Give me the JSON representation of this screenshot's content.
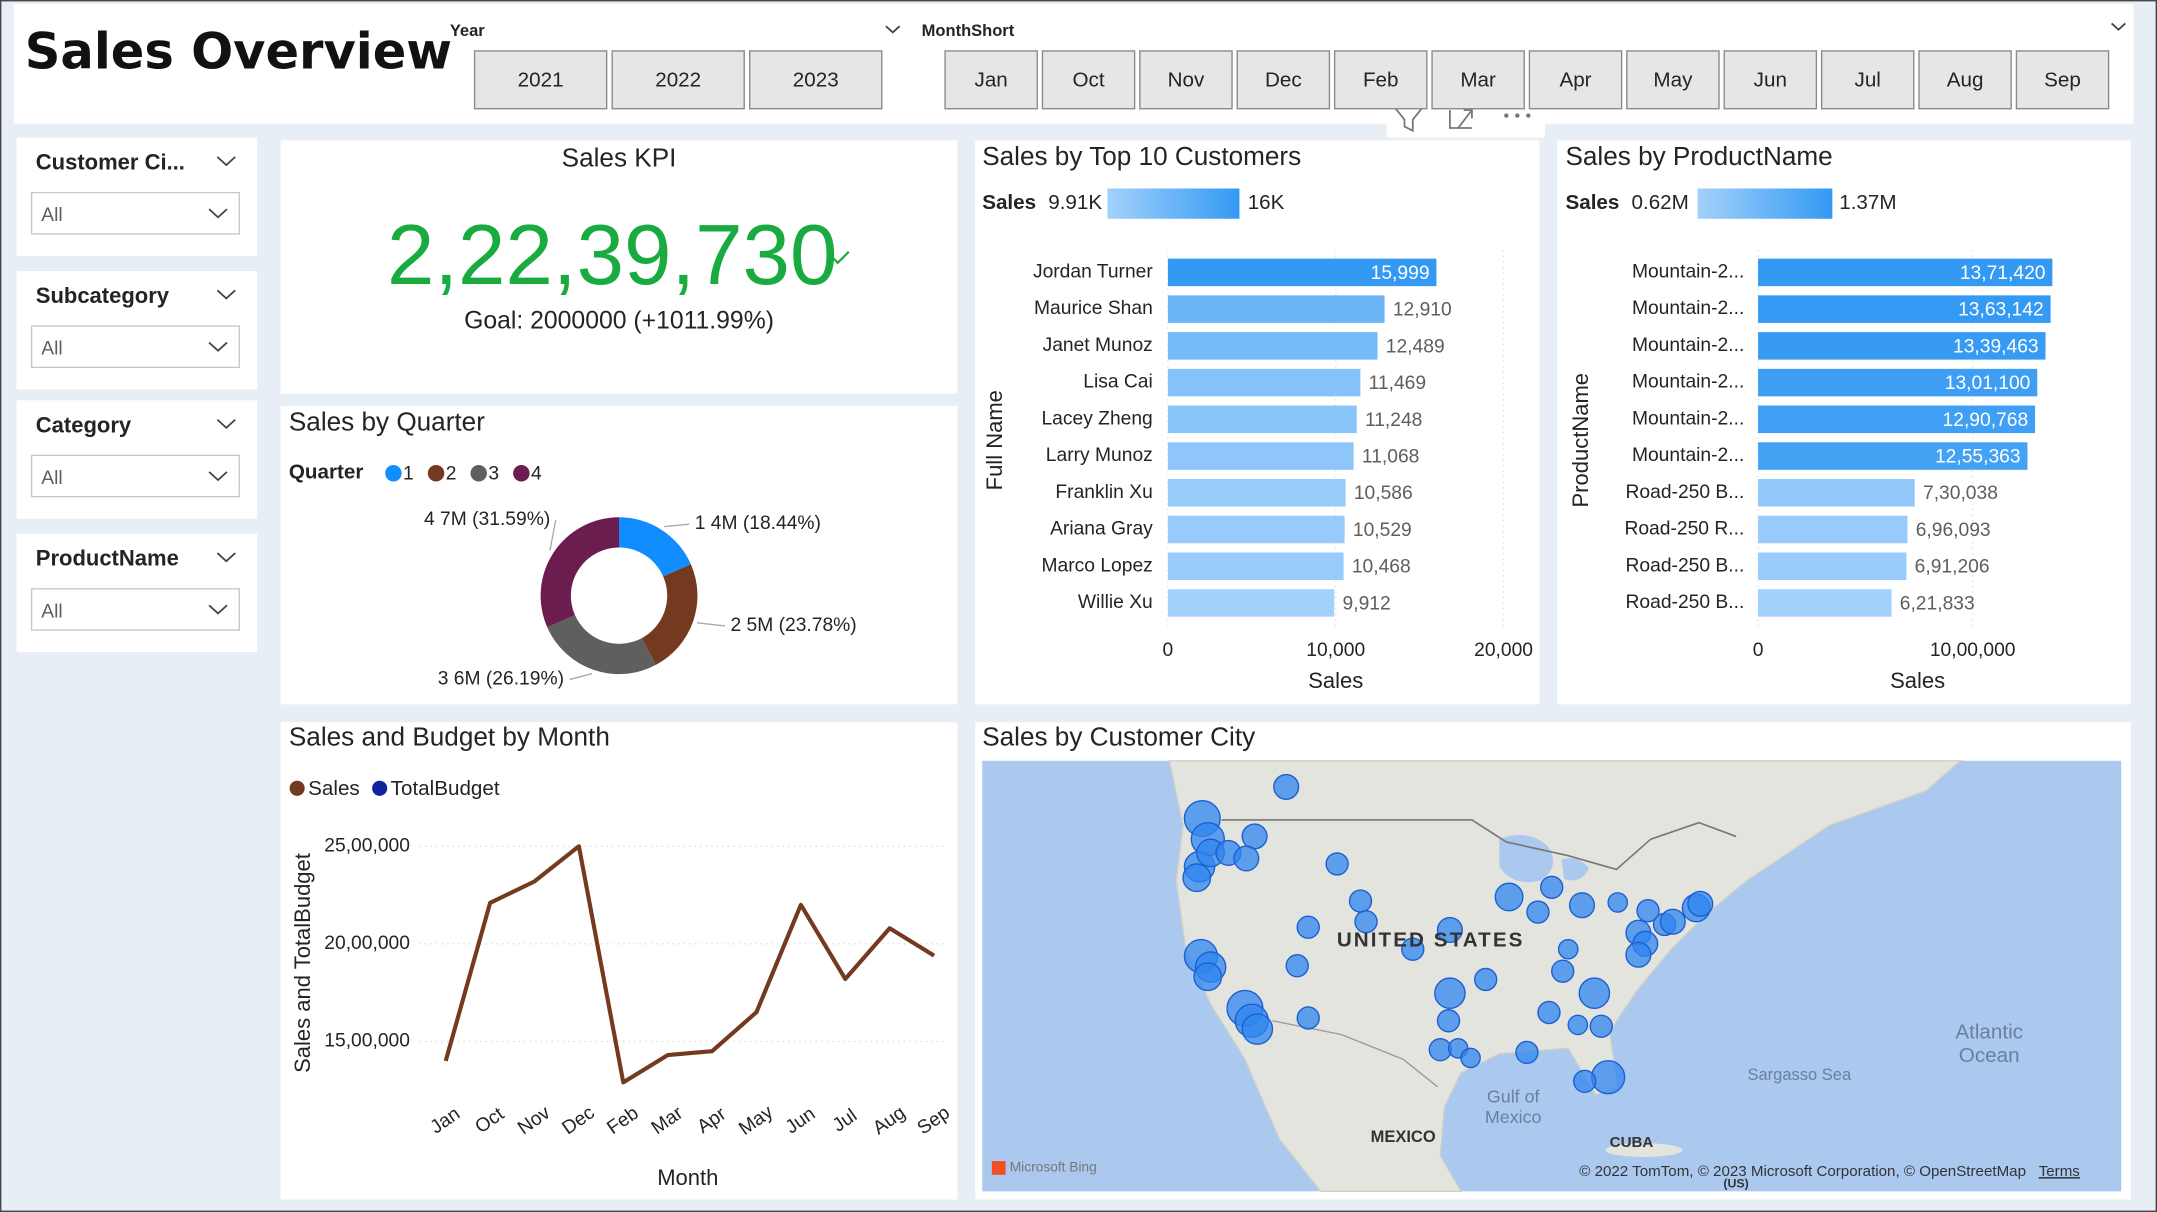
{
  "header": {
    "title": "Sales Overview"
  },
  "year_slicer": {
    "label": "Year",
    "options": [
      "2021",
      "2022",
      "2023"
    ]
  },
  "month_slicer": {
    "label": "MonthShort",
    "options": [
      "Jan",
      "Oct",
      "Nov",
      "Dec",
      "Feb",
      "Mar",
      "Apr",
      "May",
      "Jun",
      "Jul",
      "Aug",
      "Sep"
    ]
  },
  "filters": [
    {
      "label": "Customer Ci...",
      "value": "All"
    },
    {
      "label": "Subcategory",
      "value": "All"
    },
    {
      "label": "Category",
      "value": "All"
    },
    {
      "label": "ProductName",
      "value": "All"
    }
  ],
  "kpi": {
    "title": "Sales KPI",
    "value": "2,22,39,730",
    "goal": "Goal: 2000000 (+1011.99%)",
    "color": "#1aab40"
  },
  "chart_data": [
    {
      "type": "donut",
      "title": "Sales by Quarter",
      "legend_title": "Quarter",
      "categories": [
        "1",
        "2",
        "3",
        "4"
      ],
      "values": [
        18.44,
        23.78,
        26.19,
        31.59
      ],
      "value_labels": [
        "1 4M (18.44%)",
        "2 5M (23.78%)",
        "3 6M (26.19%)",
        "4 7M (31.59%)"
      ],
      "colors": [
        "#118dff",
        "#743a1f",
        "#5f5f5f",
        "#6b1d50"
      ]
    },
    {
      "type": "bar",
      "orientation": "horizontal",
      "title": "Sales by Top 10 Customers",
      "legend_title": "Sales",
      "scale_labels": [
        "9.91K",
        "16K"
      ],
      "color_min": "#a3d1fb",
      "color_max": "#3399f3",
      "y_label": "Full Name",
      "x_label": "Sales",
      "categories": [
        "Jordan Turner",
        "Maurice Shan",
        "Janet Munoz",
        "Lisa Cai",
        "Lacey Zheng",
        "Larry Munoz",
        "Franklin Xu",
        "Ariana Gray",
        "Marco Lopez",
        "Willie Xu"
      ],
      "values": [
        15999,
        12910,
        12489,
        11469,
        11248,
        11068,
        10586,
        10529,
        10468,
        9912
      ],
      "value_labels": [
        "15,999",
        "12,910",
        "12,489",
        "11,469",
        "11,248",
        "11,068",
        "10,586",
        "10,529",
        "10,468",
        "9,912"
      ],
      "xlim": [
        0,
        20000
      ],
      "xticks": [
        0,
        {
          "value": 10000,
          "label": "10,000"
        },
        {
          "value": 20000,
          "label": "20,000"
        }
      ],
      "grid": true
    },
    {
      "type": "bar",
      "orientation": "horizontal",
      "title": "Sales by ProductName",
      "legend_title": "Sales",
      "scale_labels": [
        "0.62M",
        "1.37M"
      ],
      "color_min": "#a3d1fb",
      "color_max": "#3399f3",
      "y_label": "ProductName",
      "x_label": "Sales",
      "categories": [
        "Mountain-2...",
        "Mountain-2...",
        "Mountain-2...",
        "Mountain-2...",
        "Mountain-2...",
        "Mountain-2...",
        "Road-250 B...",
        "Road-250 R...",
        "Road-250 B...",
        "Road-250 B..."
      ],
      "values": [
        1371420,
        1363142,
        1339463,
        1301100,
        1290768,
        1255363,
        730038,
        696093,
        691206,
        621833
      ],
      "value_labels": [
        "13,71,420",
        "13,63,142",
        "13,39,463",
        "13,01,100",
        "12,90,768",
        "12,55,363",
        "7,30,038",
        "6,96,093",
        "6,91,206",
        "6,21,833"
      ],
      "xlim": [
        0,
        1500000
      ],
      "xticks": [
        0,
        {
          "value": 1000000,
          "label": "10,00,000"
        }
      ],
      "grid": true
    },
    {
      "type": "line",
      "title": "Sales and Budget by Month",
      "y_label": "Sales and TotalBudget",
      "x_label": "Month",
      "categories": [
        "Jan",
        "Oct",
        "Nov",
        "Dec",
        "Feb",
        "Mar",
        "Apr",
        "May",
        "Jun",
        "Jul",
        "Aug",
        "Sep"
      ],
      "series": [
        {
          "name": "Sales",
          "color": "#743a1f",
          "values": [
            1400000,
            2210000,
            2320000,
            2500000,
            1290000,
            1430000,
            1450000,
            1650000,
            2200000,
            1820000,
            2080000,
            1940000
          ]
        },
        {
          "name": "TotalBudget",
          "color": "#12239e",
          "values": [
            null,
            null,
            null,
            null,
            null,
            null,
            null,
            null,
            null,
            null,
            null,
            null
          ]
        }
      ],
      "ylim": [
        1250000,
        2600000
      ],
      "yticks": [
        {
          "value": 1500000,
          "label": "15,00,000"
        },
        {
          "value": 2000000,
          "label": "20,00,000"
        },
        {
          "value": 2500000,
          "label": "25,00,000"
        }
      ],
      "grid": true
    }
  ],
  "map": {
    "title": "Sales by Customer City",
    "labels": [
      "UNITED STATES",
      "Atlantic",
      "Ocean",
      "Sargasso Sea",
      "Gulf of",
      "Mexico",
      "MEXICO",
      "CUBA",
      "(US)",
      "Microsoft Bing",
      "© 2022 TomTom, © 2023 Microsoft Corporation, © OpenStreetMap",
      "Terms"
    ]
  }
}
